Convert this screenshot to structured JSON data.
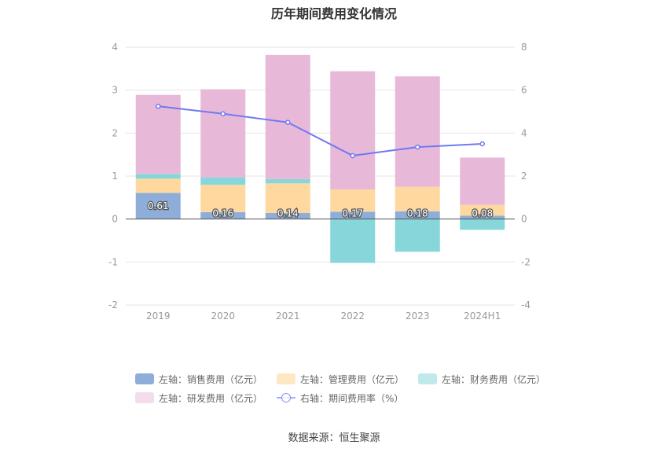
{
  "chart_data": {
    "type": "bar",
    "title": "历年期间费用变化情况",
    "categories": [
      "2019",
      "2020",
      "2021",
      "2022",
      "2023",
      "2024H1"
    ],
    "left_axis": {
      "ylim": [
        -2,
        4
      ],
      "ticks": [
        "4",
        "3",
        "2",
        "1",
        "0",
        "-1",
        "-2"
      ]
    },
    "right_axis": {
      "ylim": [
        -4,
        8
      ],
      "ticks": [
        "8",
        "6",
        "4",
        "2",
        "0",
        "-2",
        "-4"
      ]
    },
    "series": [
      {
        "name": "左轴：销售费用（亿元）",
        "axis": "left",
        "color": "#8eadd9",
        "values": [
          0.61,
          0.16,
          0.14,
          0.17,
          0.18,
          0.08
        ],
        "labels": [
          "0.61",
          "0.16",
          "0.14",
          "0.17",
          "0.18",
          "0.08"
        ]
      },
      {
        "name": "左轴：管理费用（亿元）",
        "axis": "left",
        "color": "#fed89e",
        "values": [
          0.33,
          0.64,
          0.69,
          0.52,
          0.57,
          0.25
        ]
      },
      {
        "name": "左轴：财务费用（亿元）",
        "axis": "left",
        "color": "#86d6da",
        "values": [
          0.11,
          0.17,
          0.1,
          -1.02,
          -0.76,
          -0.25
        ]
      },
      {
        "name": "左轴：研发费用（亿元）",
        "axis": "left",
        "color": "#e8b8d9",
        "values": [
          1.84,
          2.05,
          2.89,
          2.75,
          2.57,
          1.1
        ]
      },
      {
        "name": "右轴：期间费用率（%）",
        "axis": "right",
        "type": "line",
        "color": "#6e7af2",
        "values": [
          5.25,
          4.9,
          4.5,
          2.95,
          3.35,
          3.5
        ]
      }
    ],
    "legend": "bottom",
    "grid": true
  },
  "legend_rows": [
    [
      {
        "label": "左轴：销售费用（亿元）",
        "color": "#8eadd9"
      },
      {
        "label": "左轴：管理费用（亿元）",
        "color": "#fee7c4"
      },
      {
        "label": "左轴：财务费用（亿元）",
        "color": "#bfe9ea"
      }
    ],
    [
      {
        "label": "左轴：研发费用（亿元）",
        "color": "#f3dcec"
      },
      {
        "label": "右轴：期间费用率（%）",
        "color": "#6e7af2",
        "line": true
      }
    ]
  ],
  "source": "数据来源：恒生聚源"
}
